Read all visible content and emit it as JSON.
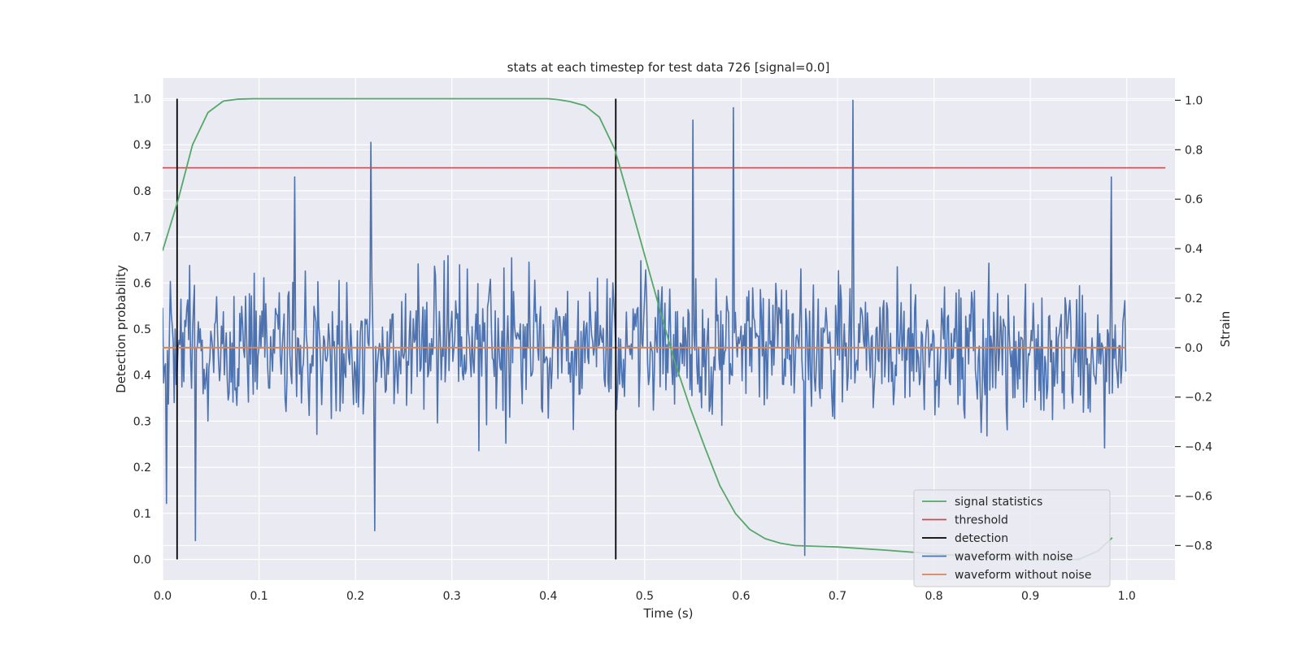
{
  "chart_data": {
    "type": "line",
    "title": "stats at each timestep for test data 726 [signal=0.0]",
    "xlabel": "Time (s)",
    "ylabel_left": "Detection probability",
    "ylabel_right": "Strain",
    "xlim": [
      0.0,
      1.05
    ],
    "ylim_left": [
      -0.045,
      1.045
    ],
    "ylim_right": [
      -0.94,
      1.09
    ],
    "x_ticks": [
      "0.0",
      "0.1",
      "0.2",
      "0.3",
      "0.4",
      "0.5",
      "0.6",
      "0.7",
      "0.8",
      "0.9",
      "1.0"
    ],
    "y_ticks_left": [
      "0.0",
      "0.1",
      "0.2",
      "0.3",
      "0.4",
      "0.5",
      "0.6",
      "0.7",
      "0.8",
      "0.9",
      "1.0"
    ],
    "y_ticks_right": [
      "−0.8",
      "−0.6",
      "−0.4",
      "−0.2",
      "0.0",
      "0.2",
      "0.4",
      "0.6",
      "0.8",
      "1.0"
    ],
    "grid": true,
    "legend_position": "lower-right",
    "background_color": "#eaeaf2",
    "series": [
      {
        "name": "signal statistics",
        "axis": "left",
        "color": "#55a868",
        "x": [
          0.0,
          0.016,
          0.031,
          0.047,
          0.063,
          0.078,
          0.094,
          0.11,
          0.2,
          0.3,
          0.4,
          0.41,
          0.422,
          0.438,
          0.453,
          0.469,
          0.484,
          0.5,
          0.516,
          0.531,
          0.547,
          0.563,
          0.578,
          0.594,
          0.609,
          0.625,
          0.641,
          0.656,
          0.7,
          0.75,
          0.8,
          0.85,
          0.9,
          0.95,
          0.97,
          0.985
        ],
        "y": [
          0.67,
          0.78,
          0.9,
          0.97,
          0.995,
          0.999,
          1.0,
          1.0,
          1.0,
          1.0,
          1.0,
          0.998,
          0.994,
          0.985,
          0.96,
          0.89,
          0.78,
          0.66,
          0.54,
          0.43,
          0.33,
          0.24,
          0.16,
          0.1,
          0.065,
          0.045,
          0.035,
          0.03,
          0.027,
          0.02,
          0.012,
          0.005,
          0.0,
          0.0,
          0.018,
          0.047
        ]
      },
      {
        "name": "threshold",
        "axis": "left",
        "color": "#c44e52",
        "x": [
          0.0,
          1.04
        ],
        "y": [
          0.85,
          0.85
        ]
      },
      {
        "name": "detection",
        "axis": "left",
        "color": "#000000",
        "x_positions": [
          0.015,
          0.47
        ],
        "y_range": [
          0.0,
          1.0
        ]
      },
      {
        "name": "waveform with noise",
        "axis": "right",
        "color": "#4c72b0",
        "x_range": [
          0.0,
          0.999
        ],
        "num_points": 1000,
        "peaks": [
          {
            "x": 0.004,
            "y": -0.63
          },
          {
            "x": 0.034,
            "y": -0.78
          },
          {
            "x": 0.137,
            "y": 0.69
          },
          {
            "x": 0.216,
            "y": 0.83
          },
          {
            "x": 0.22,
            "y": -0.74
          },
          {
            "x": 0.55,
            "y": 0.92
          },
          {
            "x": 0.592,
            "y": 0.97
          },
          {
            "x": 0.666,
            "y": -0.84
          },
          {
            "x": 0.716,
            "y": 1.0
          },
          {
            "x": 0.984,
            "y": 0.69
          }
        ]
      },
      {
        "name": "waveform without noise",
        "axis": "right",
        "color": "#dd8452",
        "x": [
          0.0,
          0.999
        ],
        "y": [
          0.0,
          0.0
        ]
      }
    ]
  }
}
